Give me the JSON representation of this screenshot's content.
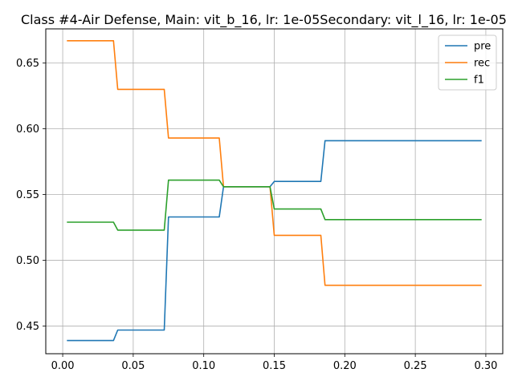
{
  "chart_data": {
    "type": "line",
    "title": "Class #4-Air Defense, Main: vit_b_16, lr: 1e-05Secondary: vit_l_16, lr: 1e-05",
    "xlabel": "",
    "ylabel": "",
    "xlim": [
      -0.012,
      0.312
    ],
    "ylim": [
      0.429,
      0.676
    ],
    "xticks": [
      0.0,
      0.05,
      0.1,
      0.15,
      0.2,
      0.25,
      0.3
    ],
    "xtick_labels": [
      "0.00",
      "0.05",
      "0.10",
      "0.15",
      "0.20",
      "0.25",
      "0.30"
    ],
    "yticks": [
      0.45,
      0.5,
      0.55,
      0.6,
      0.65
    ],
    "ytick_labels": [
      "0.45",
      "0.50",
      "0.55",
      "0.60",
      "0.65"
    ],
    "grid": true,
    "legend_position": "top-right",
    "series": [
      {
        "name": "pre",
        "color": "#1f77b4",
        "points": [
          [
            0.003,
            0.439
          ],
          [
            0.036,
            0.439
          ],
          [
            0.039,
            0.447
          ],
          [
            0.072,
            0.447
          ],
          [
            0.075,
            0.533
          ],
          [
            0.111,
            0.533
          ],
          [
            0.114,
            0.556
          ],
          [
            0.147,
            0.556
          ],
          [
            0.15,
            0.56
          ],
          [
            0.183,
            0.56
          ],
          [
            0.186,
            0.591
          ],
          [
            0.297,
            0.591
          ]
        ]
      },
      {
        "name": "rec",
        "color": "#ff7f0e",
        "points": [
          [
            0.003,
            0.667
          ],
          [
            0.036,
            0.667
          ],
          [
            0.039,
            0.63
          ],
          [
            0.072,
            0.63
          ],
          [
            0.075,
            0.593
          ],
          [
            0.111,
            0.593
          ],
          [
            0.114,
            0.556
          ],
          [
            0.147,
            0.556
          ],
          [
            0.15,
            0.519
          ],
          [
            0.183,
            0.519
          ],
          [
            0.186,
            0.481
          ],
          [
            0.297,
            0.481
          ]
        ]
      },
      {
        "name": "f1",
        "color": "#2ca02c",
        "points": [
          [
            0.003,
            0.529
          ],
          [
            0.036,
            0.529
          ],
          [
            0.039,
            0.523
          ],
          [
            0.072,
            0.523
          ],
          [
            0.075,
            0.561
          ],
          [
            0.111,
            0.561
          ],
          [
            0.114,
            0.556
          ],
          [
            0.147,
            0.556
          ],
          [
            0.15,
            0.539
          ],
          [
            0.183,
            0.539
          ],
          [
            0.186,
            0.531
          ],
          [
            0.297,
            0.531
          ]
        ]
      }
    ]
  }
}
